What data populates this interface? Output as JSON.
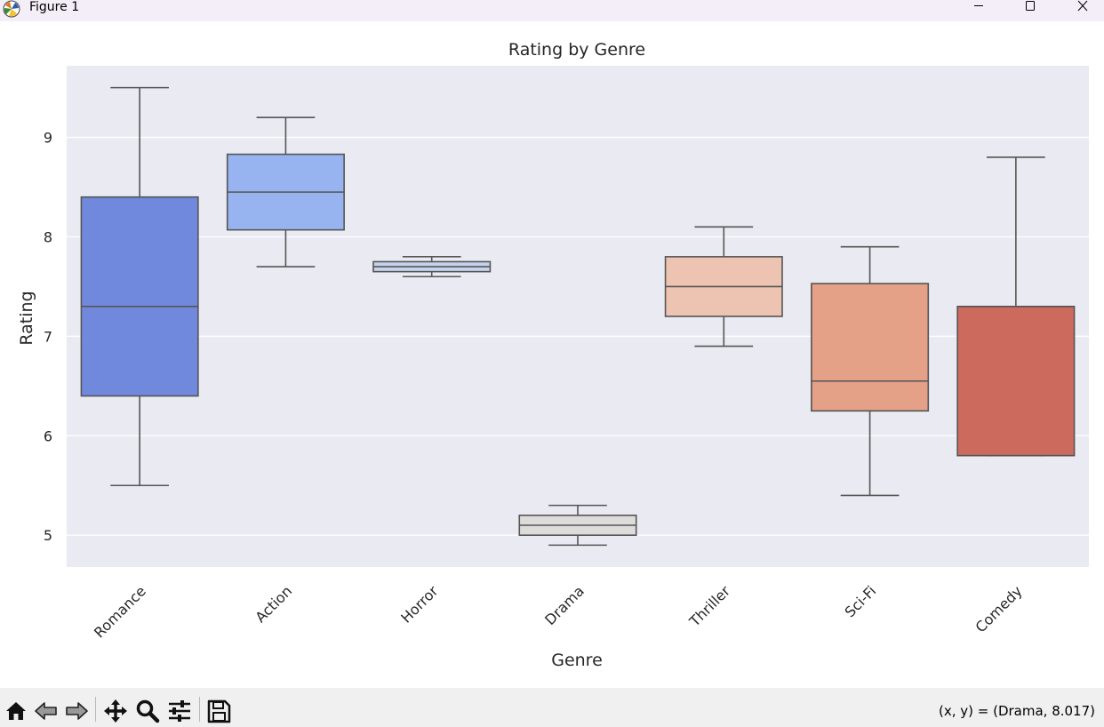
{
  "window": {
    "title": "Figure 1",
    "icons": {
      "app": "matplotlib-logo-icon",
      "minimize": "minimize-icon",
      "maximize": "maximize-icon",
      "close": "close-icon"
    }
  },
  "toolbar": {
    "tools": [
      {
        "name": "home-button",
        "icon": "home-icon"
      },
      {
        "name": "back-button",
        "icon": "arrow-left-icon"
      },
      {
        "name": "forward-button",
        "icon": "arrow-right-icon"
      },
      {
        "name": "pan-button",
        "icon": "move-icon"
      },
      {
        "name": "zoom-button",
        "icon": "magnifier-icon"
      },
      {
        "name": "configure-subplots-button",
        "icon": "sliders-icon"
      },
      {
        "name": "save-button",
        "icon": "floppy-disk-icon"
      }
    ],
    "coords": "(x, y) = (Drama, 8.017)"
  },
  "chart_data": {
    "type": "box",
    "title": "Rating by Genre",
    "xlabel": "Genre",
    "ylabel": "Rating",
    "ylim": [
      4.68,
      9.72
    ],
    "yticks": [
      "5",
      "6",
      "7",
      "8",
      "9"
    ],
    "grid": true,
    "background": "#eaeaf2",
    "categories": [
      "Romance",
      "Action",
      "Horror",
      "Drama",
      "Thriller",
      "Sci-Fi",
      "Comedy"
    ],
    "boxes": [
      {
        "category": "Romance",
        "whisker_low": 5.5,
        "q1": 6.4,
        "median": 7.3,
        "q3": 8.4,
        "whisker_high": 9.5,
        "color": "#7089dd"
      },
      {
        "category": "Action",
        "whisker_low": 7.7,
        "q1": 8.07,
        "median": 8.45,
        "q3": 8.83,
        "whisker_high": 9.2,
        "color": "#97b3f0"
      },
      {
        "category": "Horror",
        "whisker_low": 7.6,
        "q1": 7.65,
        "median": 7.7,
        "q3": 7.75,
        "whisker_high": 7.8,
        "color": "#c5d3ed"
      },
      {
        "category": "Drama",
        "whisker_low": 4.9,
        "q1": 5.0,
        "median": 5.1,
        "q3": 5.2,
        "whisker_high": 5.3,
        "color": "#dddcdb"
      },
      {
        "category": "Thriller",
        "whisker_low": 6.9,
        "q1": 7.2,
        "median": 7.5,
        "q3": 7.8,
        "whisker_high": 8.1,
        "color": "#edc4b1"
      },
      {
        "category": "Sci-Fi",
        "whisker_low": 5.4,
        "q1": 6.25,
        "median": 6.55,
        "q3": 7.53,
        "whisker_high": 7.9,
        "color": "#e5a088"
      },
      {
        "category": "Comedy",
        "whisker_low": 5.8,
        "q1": 5.8,
        "median": 7.3,
        "q3": 7.3,
        "whisker_high": 8.8,
        "color": "#cd6a5e"
      }
    ]
  }
}
